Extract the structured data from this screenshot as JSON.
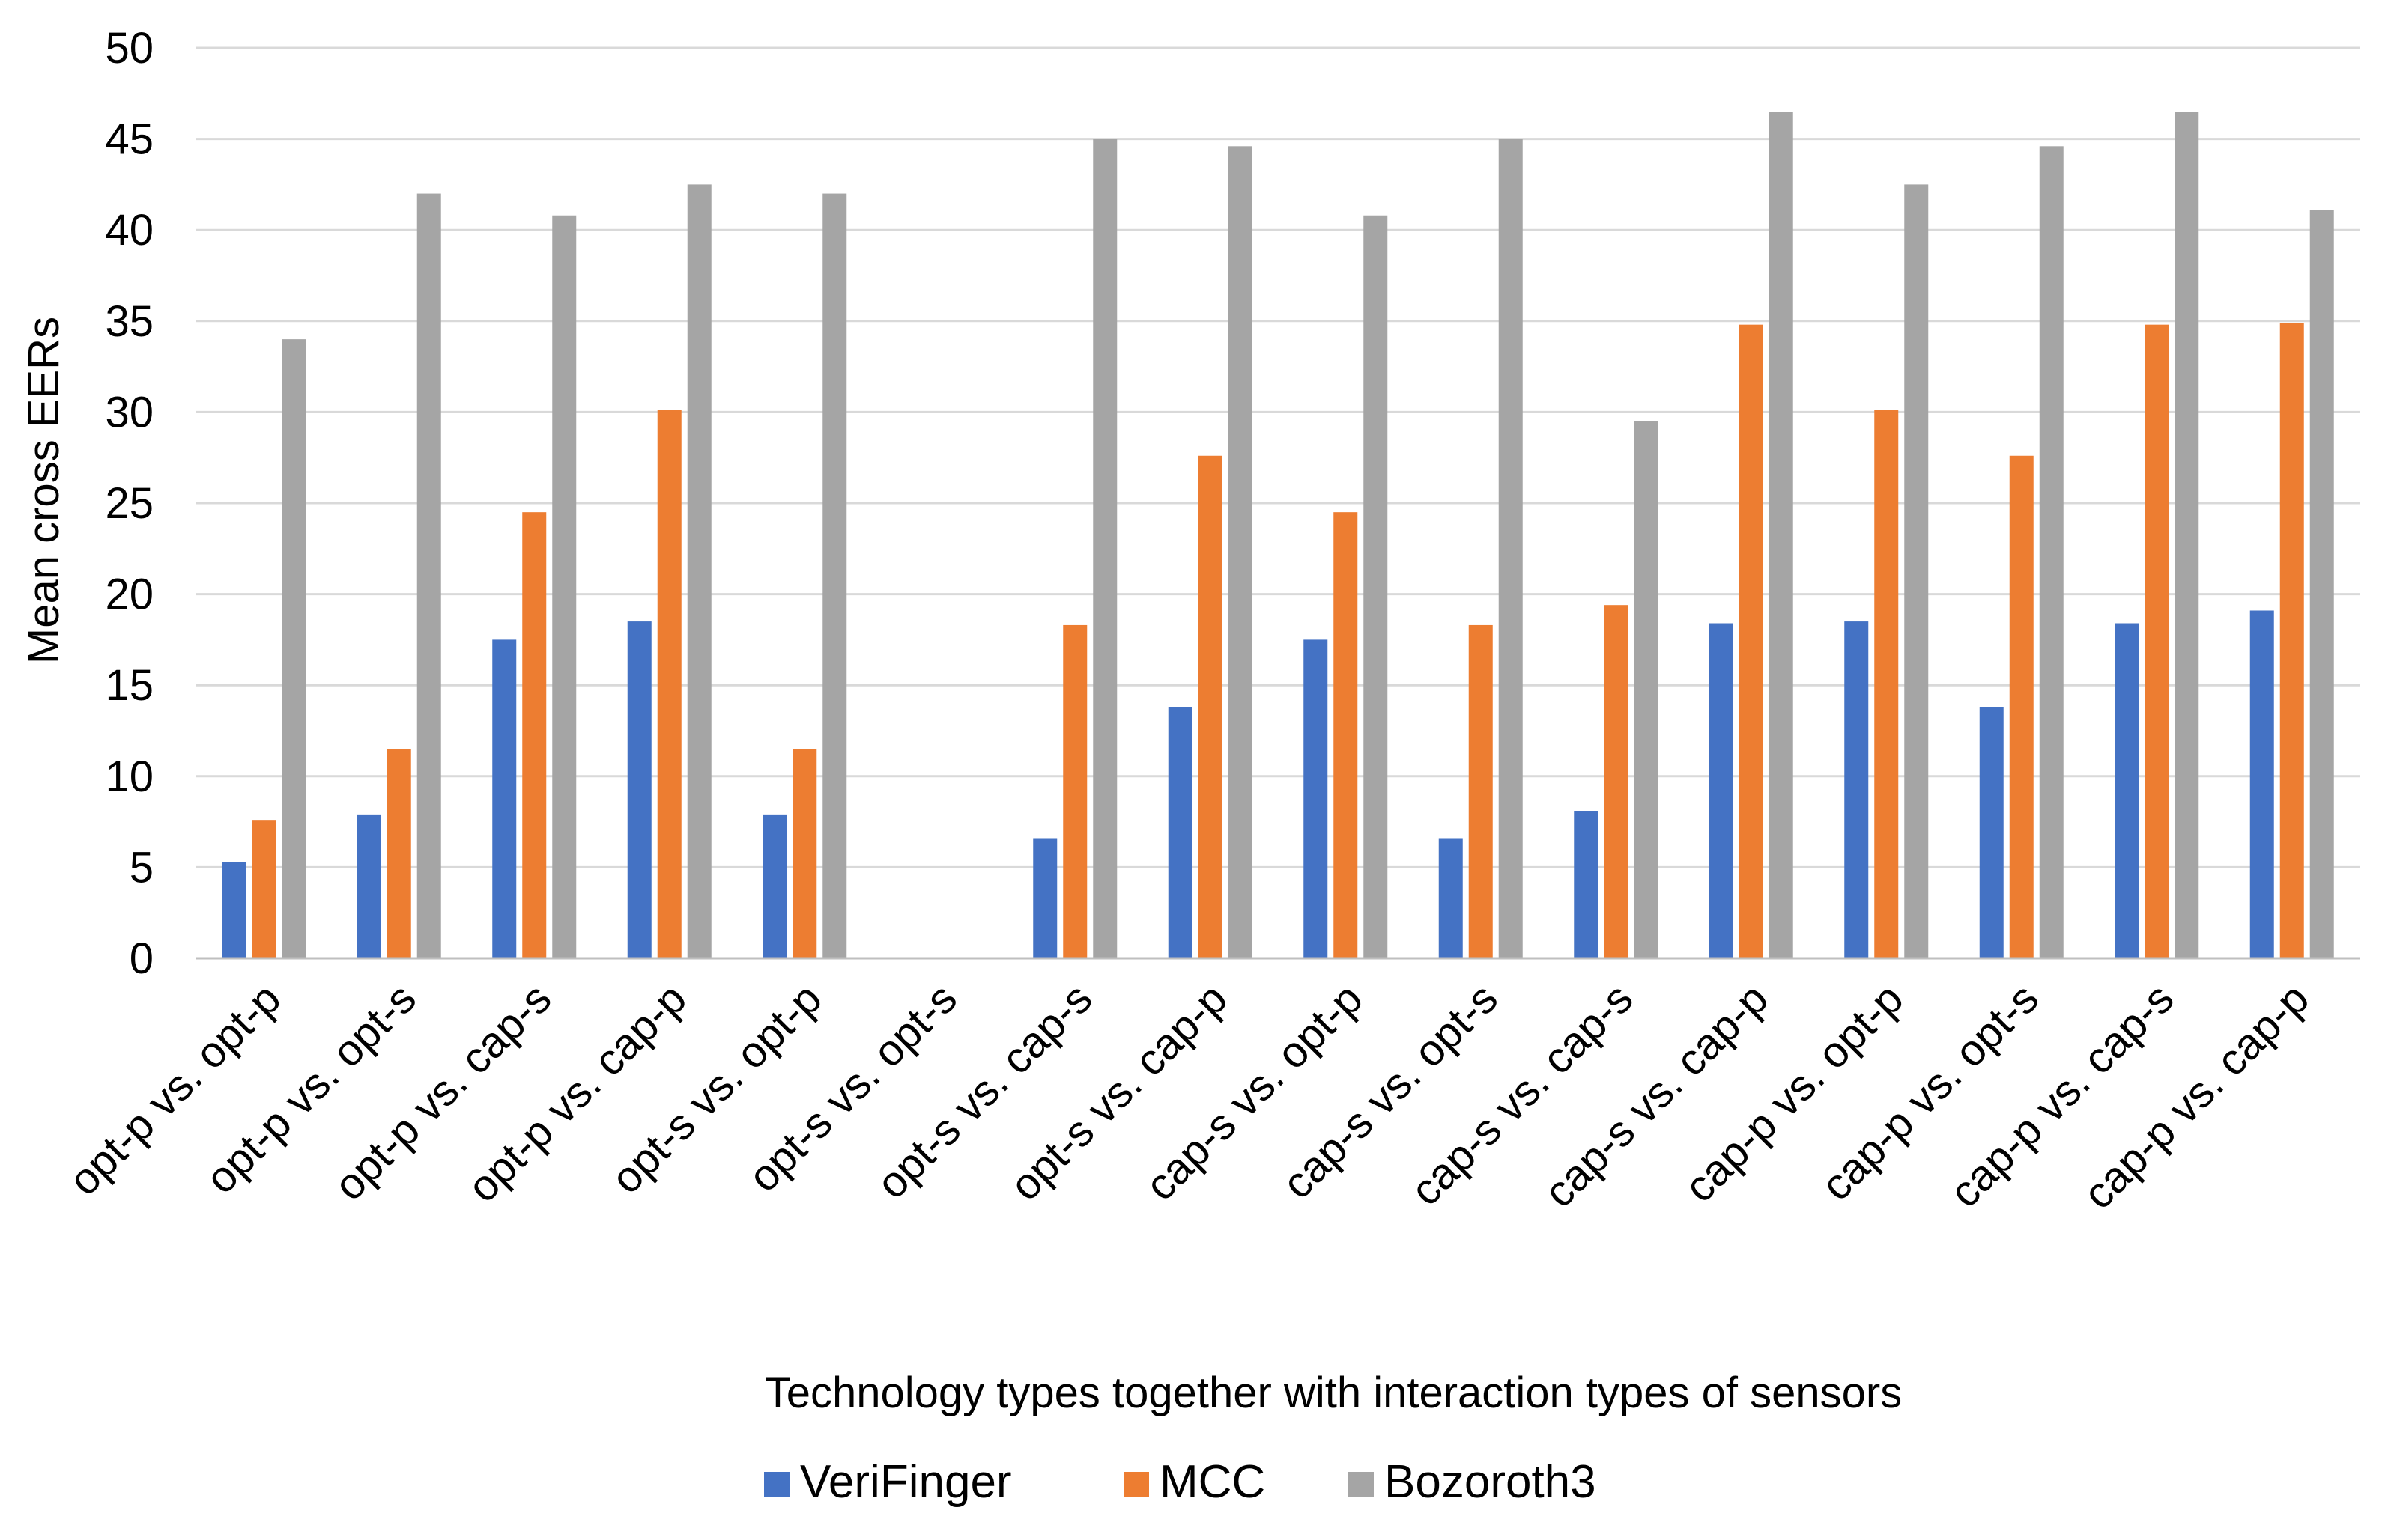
{
  "chart_data": {
    "type": "bar",
    "title": "",
    "xlabel": "Technology types together with interaction types of sensors",
    "ylabel": "Mean cross EERs",
    "ylim": [
      0,
      50
    ],
    "yticks": [
      0,
      5,
      10,
      15,
      20,
      25,
      30,
      35,
      40,
      45,
      50
    ],
    "grid": true,
    "legend_position": "bottom",
    "categories": [
      "opt-p vs. opt-p",
      "opt-p vs. opt-s",
      "opt-p vs. cap-s",
      "opt-p vs. cap-p",
      "opt-s vs. opt-p",
      "opt-s vs. opt-s",
      "opt-s vs. cap-s",
      "opt-s vs. cap-p",
      "cap-s vs. opt-p",
      "cap-s vs. opt-s",
      "cap-s vs. cap-s",
      "cap-s vs. cap-p",
      "cap-p vs. opt-p",
      "cap-p vs. opt-s",
      "cap-p vs. cap-s",
      "cap-p vs. cap-p"
    ],
    "series": [
      {
        "name": "VeriFinger",
        "color": "#4472C4",
        "values": [
          5.3,
          7.9,
          17.5,
          18.5,
          7.9,
          0,
          6.6,
          13.8,
          17.5,
          6.6,
          8.1,
          18.4,
          18.5,
          13.8,
          18.4,
          19.1
        ]
      },
      {
        "name": "MCC",
        "color": "#ED7D31",
        "values": [
          7.6,
          11.5,
          24.5,
          30.1,
          11.5,
          0,
          18.3,
          27.6,
          24.5,
          18.3,
          19.4,
          34.8,
          30.1,
          27.6,
          34.8,
          34.9
        ]
      },
      {
        "name": "Bozoroth3",
        "color": "#A5A5A5",
        "values": [
          34.0,
          42.0,
          40.8,
          42.5,
          42.0,
          0,
          45.0,
          44.6,
          40.8,
          45.0,
          29.5,
          46.5,
          42.5,
          44.6,
          46.5,
          41.1
        ]
      }
    ]
  }
}
